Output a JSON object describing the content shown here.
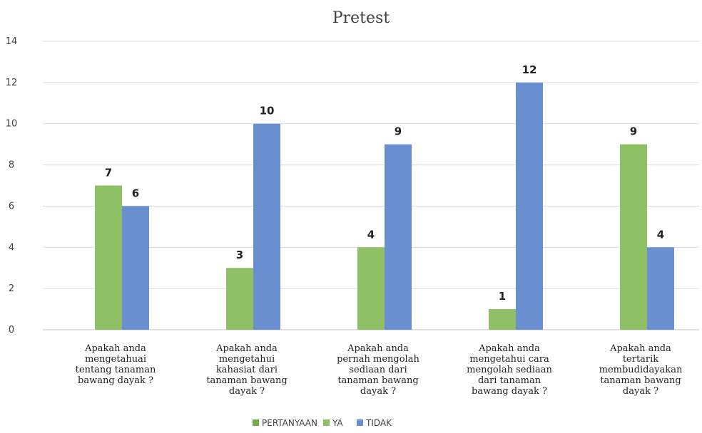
{
  "chart_data": {
    "type": "bar",
    "title": "Pretest",
    "xlabel": "",
    "ylabel": "",
    "ylim": [
      0,
      14
    ],
    "yticks": [
      0,
      2,
      4,
      6,
      8,
      10,
      12,
      14
    ],
    "grid": true,
    "legend_position": "bottom",
    "categories": [
      [
        "Apakah anda",
        "mengetahuai",
        "tentang tanaman",
        "bawang dayak ?"
      ],
      [
        "Apakah anda",
        "mengetahui",
        "kahasiat dari",
        "tanaman bawang",
        "dayak ?"
      ],
      [
        "Apakah anda",
        "pernah mengolah",
        "sediaan dari",
        "tanaman bawang",
        "dayak ?"
      ],
      [
        "Apakah anda",
        "mengetahui cara",
        "mengolah sediaan",
        "dari tanaman",
        "bawang dayak ?"
      ],
      [
        "Apakah anda",
        "tertarik",
        "membudidayakan",
        "tanaman bawang",
        "dayak ?"
      ]
    ],
    "series": [
      {
        "name": "PERTANYAAN",
        "color": "#70ad47",
        "values": [
          null,
          null,
          null,
          null,
          null
        ]
      },
      {
        "name": "YA",
        "color": "#8ec165",
        "values": [
          7,
          3,
          4,
          1,
          9
        ]
      },
      {
        "name": "TIDAK",
        "color": "#6a8fd0",
        "values": [
          6,
          10,
          9,
          12,
          4
        ]
      }
    ]
  }
}
